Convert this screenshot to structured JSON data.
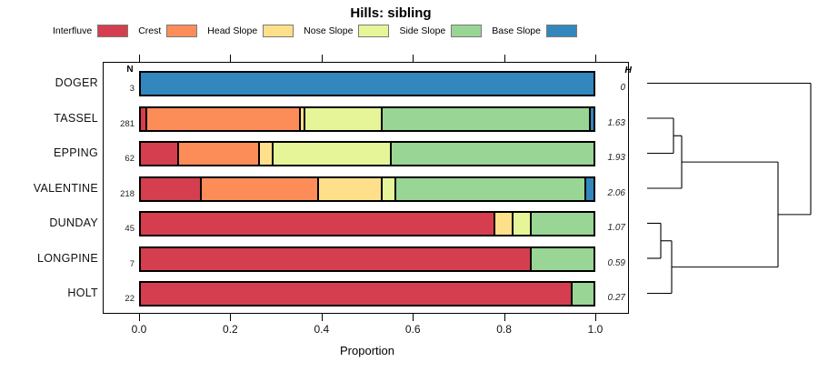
{
  "title": "Hills: sibling",
  "xlabel": "Proportion",
  "n_header": "N",
  "h_header": "H",
  "legend": {
    "items": [
      {
        "label": "Interfluve",
        "color": "#D53E4F"
      },
      {
        "label": "Crest",
        "color": "#FC8D59"
      },
      {
        "label": "Head Slope",
        "color": "#FEE08B"
      },
      {
        "label": "Nose Slope",
        "color": "#E6F598"
      },
      {
        "label": "Side Slope",
        "color": "#99D594"
      },
      {
        "label": "Base Slope",
        "color": "#3288BD"
      }
    ]
  },
  "axis": {
    "ticks": [
      {
        "label": "0.0",
        "value": 0.0
      },
      {
        "label": "0.2",
        "value": 0.2
      },
      {
        "label": "0.4",
        "value": 0.4
      },
      {
        "label": "0.6",
        "value": 0.6
      },
      {
        "label": "0.8",
        "value": 0.8
      },
      {
        "label": "1.0",
        "value": 1.0
      }
    ]
  },
  "chart_data": {
    "type": "bar",
    "variant": "horizontal-stacked-proportion",
    "title": "Hills: sibling",
    "xlabel": "Proportion",
    "xlim": [
      0,
      1
    ],
    "segment_names": [
      "Interfluve",
      "Crest",
      "Head Slope",
      "Nose Slope",
      "Side Slope",
      "Base Slope"
    ],
    "segment_colors": [
      "#D53E4F",
      "#FC8D59",
      "#FEE08B",
      "#E6F598",
      "#99D594",
      "#3288BD"
    ],
    "rows": [
      {
        "name": "DOGER",
        "n": "3",
        "h": "0",
        "values": [
          0.0,
          0.0,
          0.0,
          0.0,
          0.0,
          1.0
        ]
      },
      {
        "name": "TASSEL",
        "n": "281",
        "h": "1.63",
        "values": [
          0.01,
          0.34,
          0.01,
          0.17,
          0.46,
          0.01
        ]
      },
      {
        "name": "EPPING",
        "n": "62",
        "h": "1.93",
        "values": [
          0.08,
          0.18,
          0.03,
          0.26,
          0.45,
          0.0
        ]
      },
      {
        "name": "VALENTINE",
        "n": "218",
        "h": "2.06",
        "values": [
          0.13,
          0.26,
          0.14,
          0.03,
          0.42,
          0.02
        ]
      },
      {
        "name": "DUNDAY",
        "n": "45",
        "h": "1.07",
        "values": [
          0.78,
          0.0,
          0.04,
          0.04,
          0.14,
          0.0
        ]
      },
      {
        "name": "LONGPINE",
        "n": "7",
        "h": "0.59",
        "values": [
          0.86,
          0.0,
          0.0,
          0.0,
          0.14,
          0.0
        ]
      },
      {
        "name": "HOLT",
        "n": "22",
        "h": "0.27",
        "values": [
          0.95,
          0.0,
          0.0,
          0.0,
          0.05,
          0.0
        ]
      }
    ]
  },
  "dendrogram": {
    "note": "sideways dendrogram; x = height offset px from leaf base, y = row index units",
    "segments": [
      [
        0,
        1,
        29,
        1
      ],
      [
        0,
        2,
        29,
        2
      ],
      [
        29,
        1,
        29,
        2
      ],
      [
        29,
        1.5,
        38,
        1.5
      ],
      [
        0,
        3,
        38,
        3
      ],
      [
        38,
        1.5,
        38,
        3
      ],
      [
        38,
        2.25,
        144,
        2.25
      ],
      [
        0,
        4,
        15,
        4
      ],
      [
        0,
        5,
        15,
        5
      ],
      [
        15,
        4,
        15,
        5
      ],
      [
        15,
        4.5,
        27,
        4.5
      ],
      [
        0,
        6,
        27,
        6
      ],
      [
        27,
        4.5,
        27,
        6
      ],
      [
        27,
        5.25,
        144,
        5.25
      ],
      [
        144,
        2.25,
        144,
        5.25
      ],
      [
        144,
        3.75,
        180,
        3.75
      ],
      [
        0,
        0,
        180,
        0
      ],
      [
        180,
        0,
        180,
        3.75
      ]
    ]
  }
}
